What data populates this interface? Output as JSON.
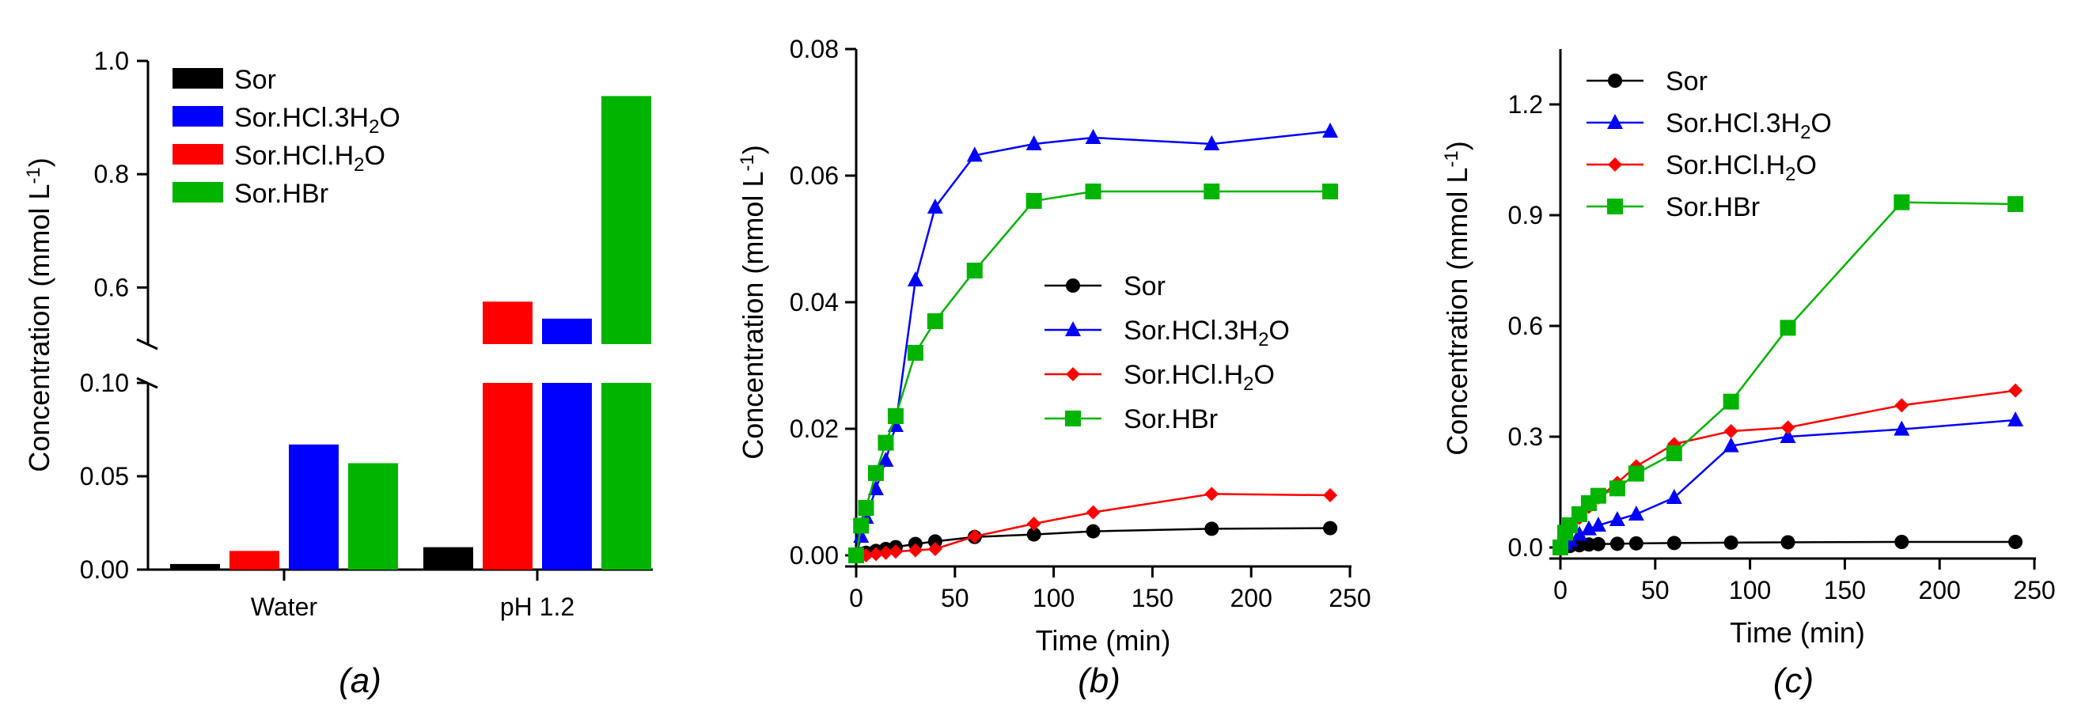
{
  "colors": {
    "Sor": "#000000",
    "Sor.HCl.3H2O": "#0000ff",
    "Sor.HCl.H2O": "#ff0000",
    "Sor.HBr": "#00b400"
  },
  "legend_labels": {
    "Sor": "Sor",
    "Sor.HCl.3H2O": {
      "pre": "Sor.HCl.3H",
      "sub": "2",
      "post": "O"
    },
    "Sor.HCl.H2O": {
      "pre": "Sor.HCl.H",
      "sub": "2",
      "post": "O"
    },
    "Sor.HBr": "Sor.HBr"
  },
  "chart_data": [
    {
      "panel": "(a)",
      "type": "bar",
      "ylabel": "Concentration (mmol L",
      "ylabel_sup": "-1",
      "ylabel_close": ")",
      "categories": [
        "Water",
        "pH 1.2"
      ],
      "series": [
        {
          "name": "Sor",
          "values": [
            0.003,
            0.012
          ]
        },
        {
          "name": "Sor.HCl.H2O",
          "values": [
            0.01,
            0.575
          ]
        },
        {
          "name": "Sor.HCl.3H2O",
          "values": [
            0.067,
            0.545
          ]
        },
        {
          "name": "Sor.HBr",
          "values": [
            0.057,
            0.938
          ]
        }
      ],
      "legend_order": [
        "Sor",
        "Sor.HCl.3H2O",
        "Sor.HCl.H2O",
        "Sor.HBr"
      ],
      "broken_axis": {
        "lower_range": [
          0,
          0.1
        ],
        "upper_range": [
          0.5,
          1.0
        ]
      },
      "yticks_lower": [
        "0.00",
        "0.05",
        "0.10"
      ],
      "yticks_upper": [
        "0.6",
        "0.8",
        "1.0"
      ]
    },
    {
      "panel": "(b)",
      "type": "line",
      "xlabel": "Time (min)",
      "ylabel": "Concentration (mmol L",
      "ylabel_sup": "-1",
      "ylabel_close": ")",
      "xlim": [
        0,
        250
      ],
      "ylim": [
        0,
        0.08
      ],
      "xticks": [
        "0",
        "50",
        "100",
        "150",
        "200",
        "250"
      ],
      "yticks": [
        "0.00",
        "0.02",
        "0.04",
        "0.06",
        "0.08"
      ],
      "x": [
        0,
        2.5,
        5,
        10,
        15,
        20,
        30,
        40,
        60,
        90,
        120,
        180,
        240
      ],
      "series": [
        {
          "name": "Sor",
          "marker": "circle",
          "values": [
            0.0,
            0.0002,
            0.0004,
            0.0007,
            0.001,
            0.0013,
            0.0018,
            0.0022,
            0.0029,
            0.0033,
            0.0038,
            0.0042,
            0.0043
          ]
        },
        {
          "name": "Sor.HCl.3H2O",
          "marker": "triangle",
          "values": [
            0.0,
            0.003,
            0.006,
            0.0105,
            0.015,
            0.0205,
            0.0435,
            0.055,
            0.0632,
            0.065,
            0.066,
            0.065,
            0.067
          ]
        },
        {
          "name": "Sor.HCl.H2O",
          "marker": "diamond",
          "values": [
            0.0,
            0.0,
            0.0,
            0.0002,
            0.0004,
            0.0006,
            0.0008,
            0.001,
            0.003,
            0.005,
            0.0068,
            0.0097,
            0.0095
          ]
        },
        {
          "name": "Sor.HBr",
          "marker": "square",
          "values": [
            0.0,
            0.0047,
            0.0075,
            0.013,
            0.0178,
            0.022,
            0.032,
            0.037,
            0.045,
            0.056,
            0.0575,
            0.0575,
            0.0575
          ]
        }
      ],
      "legend_order": [
        "Sor",
        "Sor.HCl.3H2O",
        "Sor.HCl.H2O",
        "Sor.HBr"
      ]
    },
    {
      "panel": "(c)",
      "type": "line",
      "xlabel": "Time (min)",
      "ylabel": "Concentration (mmol L",
      "ylabel_sup": "-1",
      "ylabel_close": ")",
      "xlim": [
        0,
        250
      ],
      "ylim": [
        0,
        1.35
      ],
      "xticks": [
        "0",
        "50",
        "100",
        "150",
        "200",
        "250"
      ],
      "yticks": [
        "0.0",
        "0.3",
        "0.6",
        "0.9",
        "1.2"
      ],
      "x": [
        0,
        2.5,
        5,
        10,
        15,
        20,
        30,
        40,
        60,
        90,
        120,
        180,
        240
      ],
      "series": [
        {
          "name": "Sor",
          "marker": "circle",
          "values": [
            0.0,
            0.002,
            0.004,
            0.006,
            0.008,
            0.009,
            0.01,
            0.011,
            0.012,
            0.013,
            0.014,
            0.015,
            0.015
          ]
        },
        {
          "name": "Sor.HCl.3H2O",
          "marker": "triangle",
          "values": [
            0.0,
            0.01,
            0.02,
            0.035,
            0.05,
            0.06,
            0.075,
            0.09,
            0.135,
            0.275,
            0.3,
            0.32,
            0.345
          ]
        },
        {
          "name": "Sor.HCl.H2O",
          "marker": "diamond",
          "values": [
            0.0,
            0.03,
            0.05,
            0.08,
            0.11,
            0.135,
            0.175,
            0.22,
            0.28,
            0.315,
            0.325,
            0.385,
            0.425
          ]
        },
        {
          "name": "Sor.HBr",
          "marker": "square",
          "values": [
            0.0,
            0.04,
            0.06,
            0.09,
            0.12,
            0.14,
            0.16,
            0.2,
            0.255,
            0.395,
            0.595,
            0.935,
            0.93
          ]
        }
      ],
      "legend_order": [
        "Sor",
        "Sor.HCl.3H2O",
        "Sor.HCl.H2O",
        "Sor.HBr"
      ]
    }
  ]
}
